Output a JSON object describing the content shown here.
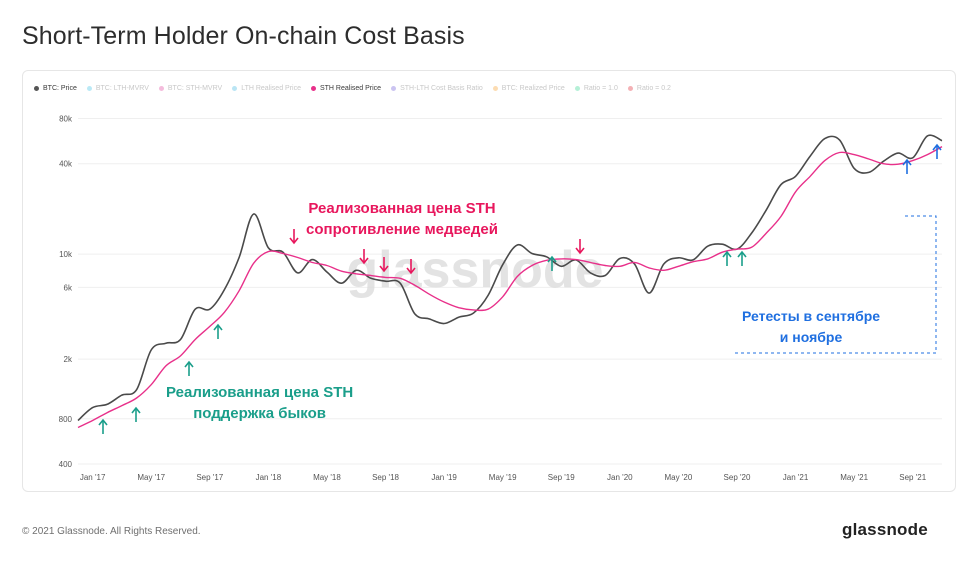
{
  "title": "Short-Term Holder On-chain Cost Basis",
  "legend": [
    {
      "label": "BTC: Price",
      "color": "#555555",
      "active": true
    },
    {
      "label": "BTC: LTH-MVRV",
      "color": "#3ac0e6",
      "active": false
    },
    {
      "label": "BTC: STH-MVRV",
      "color": "#e0409c",
      "active": false
    },
    {
      "label": "LTH Realised Price",
      "color": "#3ab4e0",
      "active": false
    },
    {
      "label": "STH Realised Price",
      "color": "#e8308a",
      "active": true
    },
    {
      "label": "STH-LTH Cost Basis Ratio",
      "color": "#6a55d8",
      "active": false
    },
    {
      "label": "BTC: Realized Price",
      "color": "#f59a23",
      "active": false
    },
    {
      "label": "Ratio = 1.0",
      "color": "#2bd48b",
      "active": false
    },
    {
      "label": "Ratio = 0.2",
      "color": "#e0202a",
      "active": false
    }
  ],
  "annotations": {
    "resistance": {
      "line1": "Реализованная цена STH",
      "line2": "сопротивление медведей",
      "color": "#e8175d"
    },
    "support": {
      "line1": "Реализованная цена STH",
      "line2": "поддержка быков",
      "color": "#1a9e8a"
    },
    "retests": {
      "line1": "Ретесты в сентябре",
      "line2": "и ноябре",
      "color": "#1f6fe0"
    }
  },
  "watermark": "glassnode",
  "footer": {
    "copyright": "© 2021 Glassnode. All Rights Reserved.",
    "logo": "glassnode"
  },
  "chart_data": {
    "type": "line",
    "title": "Short-Term Holder On-chain Cost Basis",
    "xlabel": "",
    "ylabel": "",
    "y_scale": "log",
    "ylim": [
      400,
      100000
    ],
    "y_ticks": [
      {
        "value": 400,
        "label": "400"
      },
      {
        "value": 800,
        "label": "800"
      },
      {
        "value": 2000,
        "label": "2k"
      },
      {
        "value": 6000,
        "label": "6k"
      },
      {
        "value": 10000,
        "label": "10k"
      },
      {
        "value": 40000,
        "label": "40k"
      },
      {
        "value": 80000,
        "label": "80k"
      }
    ],
    "x_ticks": [
      "Jan '17",
      "May '17",
      "Sep '17",
      "Jan '18",
      "May '18",
      "Sep '18",
      "Jan '19",
      "May '19",
      "Sep '19",
      "Jan '20",
      "May '20",
      "Sep '20",
      "Jan '21",
      "May '21",
      "Sep '21"
    ],
    "x_start": "2016-12",
    "x_end": "2021-11",
    "grid": true,
    "legend_position": "top-left",
    "series": [
      {
        "name": "BTC: Price",
        "color": "#4a4a4a",
        "points": [
          [
            "2016-12",
            780
          ],
          [
            "2017-01",
            950
          ],
          [
            "2017-02",
            1000
          ],
          [
            "2017-03",
            1150
          ],
          [
            "2017-04",
            1250
          ],
          [
            "2017-05",
            2300
          ],
          [
            "2017-06",
            2550
          ],
          [
            "2017-07",
            2700
          ],
          [
            "2017-08",
            4300
          ],
          [
            "2017-09",
            4300
          ],
          [
            "2017-10",
            5800
          ],
          [
            "2017-11",
            9500
          ],
          [
            "2017-12",
            18500
          ],
          [
            "2018-01",
            11000
          ],
          [
            "2018-02",
            10300
          ],
          [
            "2018-03",
            7500
          ],
          [
            "2018-04",
            9200
          ],
          [
            "2018-05",
            7600
          ],
          [
            "2018-06",
            6400
          ],
          [
            "2018-07",
            7800
          ],
          [
            "2018-08",
            6900
          ],
          [
            "2018-09",
            6600
          ],
          [
            "2018-10",
            6400
          ],
          [
            "2018-11",
            4000
          ],
          [
            "2018-12",
            3700
          ],
          [
            "2019-01",
            3450
          ],
          [
            "2019-02",
            3800
          ],
          [
            "2019-03",
            4050
          ],
          [
            "2019-04",
            5300
          ],
          [
            "2019-05",
            8500
          ],
          [
            "2019-06",
            11500
          ],
          [
            "2019-07",
            10100
          ],
          [
            "2019-08",
            9600
          ],
          [
            "2019-09",
            8300
          ],
          [
            "2019-10",
            9150
          ],
          [
            "2019-11",
            7500
          ],
          [
            "2019-12",
            7200
          ],
          [
            "2020-01",
            9350
          ],
          [
            "2020-02",
            8600
          ],
          [
            "2020-03",
            5500
          ],
          [
            "2020-04",
            8600
          ],
          [
            "2020-05",
            9450
          ],
          [
            "2020-06",
            9150
          ],
          [
            "2020-07",
            11300
          ],
          [
            "2020-08",
            11650
          ],
          [
            "2020-09",
            10800
          ],
          [
            "2020-10",
            13800
          ],
          [
            "2020-11",
            19700
          ],
          [
            "2020-12",
            29000
          ],
          [
            "2021-01",
            33000
          ],
          [
            "2021-02",
            45000
          ],
          [
            "2021-03",
            58800
          ],
          [
            "2021-04",
            57700
          ],
          [
            "2021-05",
            37300
          ],
          [
            "2021-06",
            35000
          ],
          [
            "2021-07",
            41500
          ],
          [
            "2021-08",
            47100
          ],
          [
            "2021-09",
            43800
          ],
          [
            "2021-10",
            61300
          ],
          [
            "2021-11",
            57000
          ]
        ]
      },
      {
        "name": "STH Realised Price",
        "color": "#e8308a",
        "points": [
          [
            "2016-12",
            700
          ],
          [
            "2017-01",
            780
          ],
          [
            "2017-02",
            880
          ],
          [
            "2017-03",
            980
          ],
          [
            "2017-04",
            1100
          ],
          [
            "2017-05",
            1350
          ],
          [
            "2017-06",
            1800
          ],
          [
            "2017-07",
            2100
          ],
          [
            "2017-08",
            2700
          ],
          [
            "2017-09",
            3300
          ],
          [
            "2017-10",
            4100
          ],
          [
            "2017-11",
            5700
          ],
          [
            "2017-12",
            8700
          ],
          [
            "2018-01",
            10400
          ],
          [
            "2018-02",
            10100
          ],
          [
            "2018-03",
            9500
          ],
          [
            "2018-04",
            8800
          ],
          [
            "2018-05",
            8400
          ],
          [
            "2018-06",
            7700
          ],
          [
            "2018-07",
            7400
          ],
          [
            "2018-08",
            7200
          ],
          [
            "2018-09",
            7000
          ],
          [
            "2018-10",
            6900
          ],
          [
            "2018-11",
            6200
          ],
          [
            "2018-12",
            5400
          ],
          [
            "2019-01",
            4800
          ],
          [
            "2019-02",
            4400
          ],
          [
            "2019-03",
            4250
          ],
          [
            "2019-04",
            4300
          ],
          [
            "2019-05",
            5200
          ],
          [
            "2019-06",
            7100
          ],
          [
            "2019-07",
            8400
          ],
          [
            "2019-08",
            9100
          ],
          [
            "2019-09",
            9300
          ],
          [
            "2019-10",
            9200
          ],
          [
            "2019-11",
            8800
          ],
          [
            "2019-12",
            8400
          ],
          [
            "2020-01",
            8300
          ],
          [
            "2020-02",
            8800
          ],
          [
            "2020-03",
            8100
          ],
          [
            "2020-04",
            7800
          ],
          [
            "2020-05",
            8300
          ],
          [
            "2020-06",
            8900
          ],
          [
            "2020-07",
            9300
          ],
          [
            "2020-08",
            10300
          ],
          [
            "2020-09",
            10800
          ],
          [
            "2020-10",
            11100
          ],
          [
            "2020-11",
            13800
          ],
          [
            "2020-12",
            17800
          ],
          [
            "2021-01",
            26000
          ],
          [
            "2021-02",
            33000
          ],
          [
            "2021-03",
            42000
          ],
          [
            "2021-04",
            47500
          ],
          [
            "2021-05",
            46000
          ],
          [
            "2021-06",
            43000
          ],
          [
            "2021-07",
            40000
          ],
          [
            "2021-08",
            39700
          ],
          [
            "2021-09",
            42000
          ],
          [
            "2021-10",
            46000
          ],
          [
            "2021-11",
            52000
          ]
        ]
      }
    ]
  }
}
